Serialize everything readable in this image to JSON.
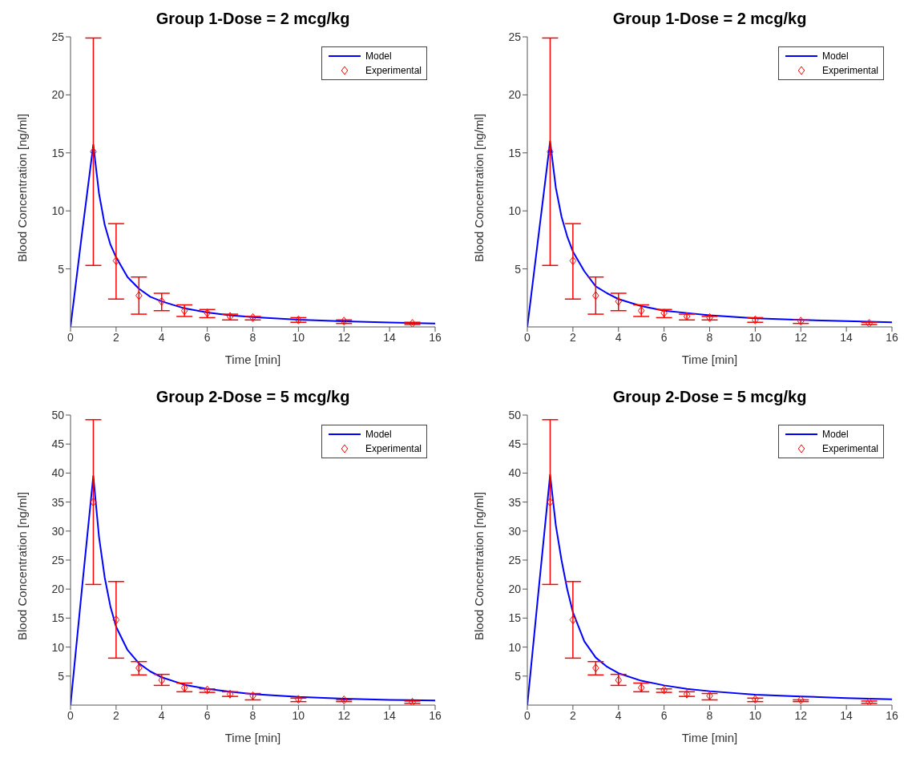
{
  "chart_data": [
    {
      "type": "line",
      "title": "Group 1-Dose = 2 mcg/kg",
      "xlabel": "Time [min]",
      "ylabel": "Blood Concentration [ng/ml]",
      "xlim": [
        0,
        16
      ],
      "xticks": [
        0,
        2,
        4,
        6,
        8,
        10,
        12,
        14,
        16
      ],
      "ylim": [
        0,
        25
      ],
      "yticks": [
        5,
        10,
        15,
        20,
        25
      ],
      "grid": false,
      "legend": "top right",
      "series": [
        {
          "name": "Model",
          "color": "#0000ff",
          "marker": "none",
          "x": [
            0,
            0.5,
            1,
            1.25,
            1.5,
            1.75,
            2,
            2.5,
            3,
            3.5,
            4,
            5,
            6,
            7,
            8,
            10,
            12,
            14,
            16
          ],
          "values": [
            0,
            8,
            15.7,
            11.5,
            8.8,
            7.1,
            6,
            4.3,
            3.3,
            2.6,
            2.2,
            1.6,
            1.25,
            1,
            0.85,
            0.62,
            0.48,
            0.38,
            0.3
          ]
        },
        {
          "name": "Experimental",
          "type": "scatter",
          "color": "#ff0000",
          "marker": "diamond",
          "x": [
            1,
            2,
            3,
            4,
            5,
            6,
            7,
            8,
            10,
            12,
            15
          ],
          "values": [
            15.1,
            5.7,
            2.7,
            2.2,
            1.4,
            1.2,
            0.9,
            0.8,
            0.6,
            0.5,
            0.3
          ],
          "errors": [
            [
              5.3,
              24.9
            ],
            [
              2.4,
              8.9
            ],
            [
              1.1,
              4.3
            ],
            [
              1.4,
              2.9
            ],
            [
              0.9,
              1.9
            ],
            [
              0.8,
              1.5
            ],
            [
              0.6,
              1.1
            ],
            [
              0.6,
              0.9
            ],
            [
              0.4,
              0.8
            ],
            [
              0.3,
              0.6
            ],
            [
              0.2,
              0.4
            ]
          ]
        }
      ]
    },
    {
      "type": "line",
      "title": "Group 1-Dose = 2 mcg/kg",
      "xlabel": "Time [min]",
      "ylabel": "Blood Concentration [ng/ml]",
      "xlim": [
        0,
        16
      ],
      "xticks": [
        0,
        2,
        4,
        6,
        8,
        10,
        12,
        14,
        16
      ],
      "ylim": [
        0,
        25
      ],
      "yticks": [
        5,
        10,
        15,
        20,
        25
      ],
      "grid": false,
      "legend": "top right",
      "series": [
        {
          "name": "Model",
          "color": "#0000ff",
          "marker": "none",
          "x": [
            0,
            0.5,
            1,
            1.25,
            1.5,
            1.75,
            2,
            2.5,
            3,
            3.5,
            4,
            5,
            6,
            7,
            8,
            10,
            12,
            14,
            16
          ],
          "values": [
            0,
            8,
            16,
            12,
            9.5,
            7.8,
            6.5,
            4.8,
            3.5,
            2.9,
            2.4,
            1.8,
            1.4,
            1.2,
            1,
            0.75,
            0.6,
            0.5,
            0.4
          ]
        },
        {
          "name": "Experimental",
          "type": "scatter",
          "color": "#ff0000",
          "marker": "diamond",
          "x": [
            1,
            2,
            3,
            4,
            5,
            6,
            7,
            8,
            10,
            12,
            15
          ],
          "values": [
            15.1,
            5.7,
            2.7,
            2.2,
            1.4,
            1.2,
            0.9,
            0.8,
            0.6,
            0.5,
            0.3
          ],
          "errors": [
            [
              5.3,
              24.9
            ],
            [
              2.4,
              8.9
            ],
            [
              1.1,
              4.3
            ],
            [
              1.4,
              2.9
            ],
            [
              0.9,
              1.9
            ],
            [
              0.8,
              1.5
            ],
            [
              0.6,
              1.1
            ],
            [
              0.6,
              0.9
            ],
            [
              0.4,
              0.8
            ],
            [
              0.3,
              0.6
            ],
            [
              0.2,
              0.4
            ]
          ]
        }
      ]
    },
    {
      "type": "line",
      "title": "Group 2-Dose = 5 mcg/kg",
      "xlabel": "Time [min]",
      "ylabel": "Blood Concentration [ng/ml]",
      "xlim": [
        0,
        16
      ],
      "xticks": [
        0,
        2,
        4,
        6,
        8,
        10,
        12,
        14,
        16
      ],
      "ylim": [
        0,
        50
      ],
      "yticks": [
        5,
        10,
        15,
        20,
        25,
        30,
        35,
        40,
        45,
        50
      ],
      "grid": false,
      "legend": "top right",
      "series": [
        {
          "name": "Model",
          "color": "#0000ff",
          "marker": "none",
          "x": [
            0,
            0.5,
            1,
            1.25,
            1.5,
            1.75,
            2,
            2.5,
            3,
            3.5,
            4,
            5,
            6,
            7,
            8,
            10,
            12,
            14,
            16
          ],
          "values": [
            0,
            20,
            39.5,
            29,
            22,
            17,
            13.5,
            9.5,
            7.2,
            5.8,
            4.8,
            3.5,
            2.8,
            2.3,
            1.9,
            1.4,
            1.1,
            0.9,
            0.8
          ]
        },
        {
          "name": "Experimental",
          "type": "scatter",
          "color": "#ff0000",
          "marker": "diamond",
          "x": [
            1,
            2,
            3,
            4,
            5,
            6,
            7,
            8,
            10,
            12,
            15
          ],
          "values": [
            35,
            14.7,
            6.4,
            4.3,
            3,
            2.6,
            1.9,
            1.6,
            1,
            0.9,
            0.5
          ],
          "errors": [
            [
              20.8,
              49.2
            ],
            [
              8.1,
              21.3
            ],
            [
              5.2,
              7.5
            ],
            [
              3.4,
              5.3
            ],
            [
              2.3,
              3.8
            ],
            [
              2.2,
              2.8
            ],
            [
              1.5,
              2.3
            ],
            [
              0.9,
              2
            ],
            [
              0.6,
              1.2
            ],
            [
              0.6,
              0.9
            ],
            [
              0.3,
              0.7
            ]
          ]
        }
      ]
    },
    {
      "type": "line",
      "title": "Group 2-Dose = 5 mcg/kg",
      "xlabel": "Time [min]",
      "ylabel": "Blood Concentration [ng/ml]",
      "xlim": [
        0,
        16
      ],
      "xticks": [
        0,
        2,
        4,
        6,
        8,
        10,
        12,
        14,
        16
      ],
      "ylim": [
        0,
        50
      ],
      "yticks": [
        5,
        10,
        15,
        20,
        25,
        30,
        35,
        40,
        45,
        50
      ],
      "grid": false,
      "legend": "top right",
      "series": [
        {
          "name": "Model",
          "color": "#0000ff",
          "marker": "none",
          "x": [
            0,
            0.5,
            1,
            1.25,
            1.5,
            1.75,
            2,
            2.5,
            3,
            3.5,
            4,
            5,
            6,
            7,
            8,
            10,
            12,
            14,
            16
          ],
          "values": [
            0,
            20,
            39.7,
            31,
            25,
            20,
            16,
            11,
            8.2,
            6.6,
            5.5,
            4.2,
            3.4,
            2.8,
            2.4,
            1.8,
            1.5,
            1.2,
            1
          ]
        },
        {
          "name": "Experimental",
          "type": "scatter",
          "color": "#ff0000",
          "marker": "diamond",
          "x": [
            1,
            2,
            3,
            4,
            5,
            6,
            7,
            8,
            10,
            12,
            15
          ],
          "values": [
            35,
            14.7,
            6.4,
            4.3,
            3,
            2.6,
            1.9,
            1.6,
            1,
            0.9,
            0.5
          ],
          "errors": [
            [
              20.8,
              49.2
            ],
            [
              8.1,
              21.3
            ],
            [
              5.2,
              7.5
            ],
            [
              3.4,
              5.3
            ],
            [
              2.3,
              3.8
            ],
            [
              2.2,
              2.8
            ],
            [
              1.5,
              2.3
            ],
            [
              0.9,
              2
            ],
            [
              0.6,
              1.2
            ],
            [
              0.6,
              0.9
            ],
            [
              0.3,
              0.7
            ]
          ]
        }
      ]
    }
  ]
}
